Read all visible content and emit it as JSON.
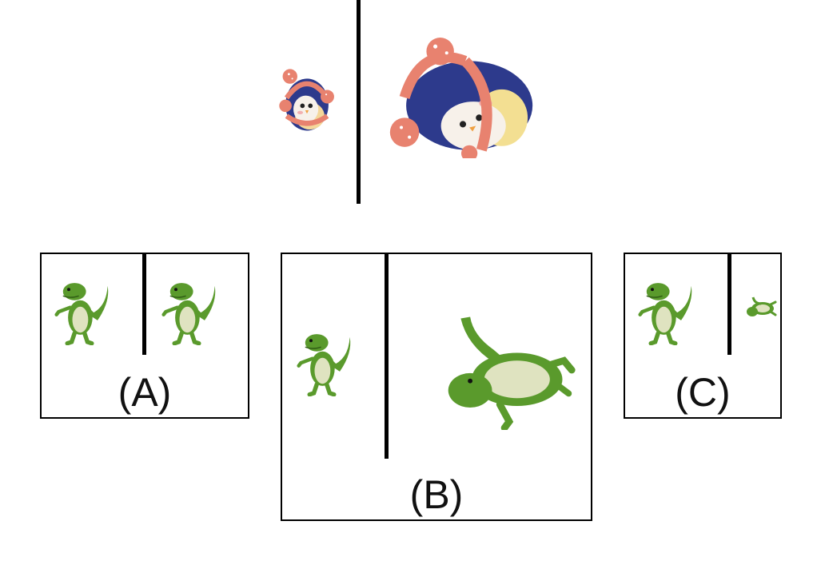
{
  "question": {
    "example_left": "penguin-toy-icon",
    "example_right": "penguin-toy-icon",
    "colors": {
      "penguin_body": "#2d3a8c",
      "penguin_ring": "#e8826f",
      "penguin_belly": "#f7f1ea",
      "dino_green": "#5a9a2c",
      "dino_belly": "#dfe3c0",
      "line": "#000000"
    }
  },
  "options": [
    {
      "label": "(A)",
      "left_icon": "dinosaur-toy-icon",
      "right_icon": "dinosaur-toy-icon"
    },
    {
      "label": "(B)",
      "left_icon": "dinosaur-toy-icon",
      "right_icon": "dinosaur-toy-icon"
    },
    {
      "label": "(C)",
      "left_icon": "dinosaur-toy-icon",
      "right_icon": "dinosaur-toy-icon"
    }
  ]
}
